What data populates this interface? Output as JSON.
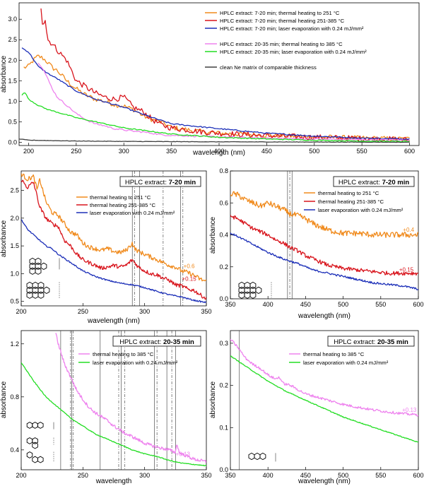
{
  "colors": {
    "orange": "#f08a1c",
    "red": "#d8141c",
    "blue": "#1c2fb8",
    "violet": "#ee82ee",
    "green": "#22dd22",
    "gray": "#404040"
  },
  "chart_data": [
    {
      "id": "top",
      "type": "line",
      "xlabel": "wavelength (nm)",
      "ylabel": "absorbance",
      "xlim": [
        190,
        610
      ],
      "ylim": [
        -0.08,
        3.4
      ],
      "xticks": [
        "200",
        "250",
        "300",
        "350",
        "400",
        "450",
        "500",
        "550",
        "600"
      ],
      "yticks": [
        "0.0",
        "0.5",
        "1.0",
        "1.5",
        "2.0",
        "2.5",
        "3.0"
      ],
      "legend": {
        "group1": [
          {
            "label": "HPLC extract: 7-20 min; thermal heating to 251 °C",
            "color": "orange"
          },
          {
            "label": "HPLC extract: 7-20 min; thermal heating 251-385 °C",
            "color": "red"
          },
          {
            "label": "HPLC extract: 7-20 min; laser evaporation with 0.24 mJ/mm²",
            "color": "blue"
          }
        ],
        "group2": [
          {
            "label": "HPLC extract: 20-35 min; thermal heating to 385 °C",
            "color": "violet"
          },
          {
            "label": "HPLC extract: 20-35 min; laser evaporation with 0.24 mJ/mm²",
            "color": "green"
          }
        ],
        "group3": [
          {
            "label": "clean Ne matrix of comparable thickness",
            "color": "gray"
          }
        ]
      },
      "series": [
        {
          "name": "7-20 min; heating to 251 °C",
          "color": "orange",
          "x": [
            195,
            200,
            205,
            210,
            215,
            220,
            225,
            230,
            240,
            250,
            260,
            270,
            280,
            290,
            300,
            310,
            320,
            330,
            340,
            350,
            380,
            400,
            450,
            500,
            550,
            600
          ],
          "y": [
            1.82,
            1.85,
            2.0,
            2.1,
            2.05,
            1.95,
            1.82,
            1.75,
            1.5,
            1.3,
            1.15,
            1.05,
            1.0,
            0.92,
            0.88,
            0.8,
            0.65,
            0.55,
            0.48,
            0.36,
            0.26,
            0.22,
            0.17,
            0.13,
            0.1,
            0.08
          ],
          "noise": 0.06
        },
        {
          "name": "7-20 min; heating 251-385 °C",
          "color": "red",
          "x": [
            213,
            215,
            217,
            220,
            225,
            230,
            240,
            250,
            260,
            270,
            280,
            290,
            300,
            310,
            320,
            330,
            340,
            350,
            380,
            400,
            450,
            500,
            550,
            600
          ],
          "y": [
            3.3,
            2.8,
            3.1,
            2.5,
            2.4,
            2.25,
            2.0,
            1.5,
            1.35,
            1.2,
            1.1,
            1.05,
            1.1,
            0.85,
            0.75,
            0.55,
            0.42,
            0.35,
            0.26,
            0.22,
            0.16,
            0.12,
            0.09,
            0.06
          ],
          "noise": 0.07
        },
        {
          "name": "7-20 min; laser evaporation",
          "color": "blue",
          "x": [
            193,
            200,
            210,
            220,
            230,
            250,
            270,
            300,
            330,
            350,
            400,
            450,
            500,
            550,
            600
          ],
          "y": [
            2.3,
            2.2,
            1.85,
            1.68,
            1.55,
            1.25,
            1.05,
            0.85,
            0.6,
            0.45,
            0.33,
            0.22,
            0.15,
            0.1,
            0.08
          ],
          "noise": 0.015
        },
        {
          "name": "20-35 min; heating to 385 °C",
          "color": "violet",
          "x": [
            210,
            215,
            220,
            225,
            230,
            240,
            250,
            260,
            270,
            280,
            290,
            300,
            310,
            320,
            330,
            340,
            350,
            400,
            450,
            500,
            550,
            600
          ],
          "y": [
            1.95,
            1.8,
            1.55,
            1.3,
            1.1,
            0.9,
            0.7,
            0.55,
            0.45,
            0.4,
            0.33,
            0.3,
            0.27,
            0.25,
            0.22,
            0.18,
            0.17,
            0.13,
            0.1,
            0.08,
            0.06,
            0.05
          ],
          "noise": 0.02
        },
        {
          "name": "20-35 min; laser evaporation",
          "color": "green",
          "x": [
            193,
            196,
            200,
            210,
            220,
            250,
            300,
            350,
            400,
            450,
            500,
            550,
            600
          ],
          "y": [
            1.15,
            1.22,
            1.05,
            0.9,
            0.8,
            0.6,
            0.35,
            0.2,
            0.12,
            0.08,
            0.05,
            0.03,
            0.02
          ],
          "noise": 0.012
        },
        {
          "name": "clean Ne matrix",
          "color": "gray",
          "x": [
            190,
            200,
            250,
            300,
            350,
            400,
            500,
            600
          ],
          "y": [
            0.08,
            0.05,
            0.03,
            0.02,
            0.015,
            0.01,
            0.005,
            0.0
          ],
          "noise": 0.005
        }
      ]
    },
    {
      "id": "mid-left",
      "type": "line",
      "xlabel": "wavelength (nm)",
      "ylabel": "absorbance",
      "xlim": [
        200,
        350
      ],
      "ylim": [
        0.42,
        2.85
      ],
      "xticks": [
        "200",
        "250",
        "300",
        "350"
      ],
      "yticks": [
        "0.5",
        "1.0",
        "1.5",
        "2.0",
        "2.5"
      ],
      "title_prefix": "HPLC extract: ",
      "title_bold": "7-20 min",
      "legend": [
        {
          "label": "thermal heating to 251 °C",
          "color": "orange"
        },
        {
          "label": "thermal heating 251-385 °C",
          "color": "red"
        },
        {
          "label": "laser evaporation with 0.24 mJ/mm²",
          "color": "blue"
        }
      ],
      "offset_labels": [
        {
          "text": "+0.6",
          "color": "orange",
          "x": 336,
          "y": 1.1
        },
        {
          "text": "+0.15",
          "color": "red",
          "x": 336,
          "y": 0.87
        }
      ],
      "vlines": [
        290,
        292,
        296,
        315,
        329,
        331
      ],
      "series": [
        {
          "name": "heating to 251 °C (+0.6)",
          "color": "orange",
          "x": [
            200,
            205,
            210,
            213,
            215,
            220,
            225,
            230,
            235,
            240,
            245,
            250,
            255,
            260,
            265,
            270,
            275,
            280,
            285,
            290,
            292,
            295,
            300,
            305,
            310,
            315,
            320,
            325,
            330,
            335,
            340,
            345,
            350
          ],
          "y": [
            2.8,
            2.7,
            2.75,
            2.5,
            2.7,
            2.3,
            2.1,
            2.05,
            1.9,
            1.75,
            1.7,
            1.55,
            1.48,
            1.45,
            1.42,
            1.45,
            1.4,
            1.38,
            1.42,
            1.55,
            1.45,
            1.4,
            1.35,
            1.3,
            1.25,
            1.2,
            1.15,
            1.12,
            1.05,
            1.02,
            0.97,
            0.9,
            0.86
          ],
          "noise": 0.04
        },
        {
          "name": "heating 251-385 °C (+0.15)",
          "color": "red",
          "x": [
            200,
            205,
            210,
            215,
            220,
            225,
            230,
            235,
            240,
            245,
            250,
            255,
            260,
            265,
            270,
            275,
            280,
            285,
            290,
            295,
            300,
            305,
            310,
            315,
            320,
            325,
            330,
            335,
            340,
            345,
            350
          ],
          "y": [
            2.7,
            2.55,
            2.65,
            2.2,
            2.0,
            1.9,
            1.85,
            1.6,
            1.5,
            1.35,
            1.25,
            1.2,
            1.15,
            1.1,
            1.12,
            1.15,
            1.12,
            1.15,
            1.25,
            1.12,
            1.05,
            1.0,
            0.98,
            0.92,
            0.88,
            0.8,
            0.78,
            0.72,
            0.7,
            0.62,
            0.55
          ],
          "noise": 0.035
        },
        {
          "name": "laser evaporation",
          "color": "blue",
          "x": [
            200,
            205,
            210,
            215,
            220,
            225,
            230,
            240,
            250,
            260,
            270,
            280,
            290,
            300,
            310,
            320,
            330,
            340,
            350
          ],
          "y": [
            1.98,
            1.8,
            1.7,
            1.6,
            1.5,
            1.45,
            1.35,
            1.2,
            1.05,
            0.95,
            0.88,
            0.83,
            0.8,
            0.75,
            0.68,
            0.62,
            0.58,
            0.52,
            0.48
          ],
          "noise": 0.012
        }
      ]
    },
    {
      "id": "mid-right",
      "type": "line",
      "xlabel": "wavelength (nm)",
      "ylabel": "absorbance",
      "xlim": [
        350,
        600
      ],
      "ylim": [
        0.0,
        0.8
      ],
      "xticks": [
        "350",
        "400",
        "450",
        "500",
        "550",
        "600"
      ],
      "yticks": [
        "0.0",
        "0.2",
        "0.4",
        "0.6",
        "0.8"
      ],
      "title_prefix": "HPLC extract: ",
      "title_bold": "7-20 min",
      "legend": [
        {
          "label": "thermal heating to 251 °C",
          "color": "orange"
        },
        {
          "label": "thermal heating 251-385 °C",
          "color": "red"
        },
        {
          "label": "laser evaporation with 0.24 mJ/mm²",
          "color": "blue"
        }
      ],
      "offset_labels": [
        {
          "text": "+0.4",
          "color": "orange",
          "x": 587,
          "y": 0.42
        },
        {
          "text": "+0.15",
          "color": "red",
          "x": 584,
          "y": 0.17
        }
      ],
      "vlines": [
        426,
        429,
        432
      ],
      "series": [
        {
          "name": "heating to 251 °C (+0.4)",
          "color": "orange",
          "x": [
            350,
            360,
            370,
            380,
            390,
            400,
            410,
            420,
            430,
            440,
            450,
            460,
            470,
            480,
            490,
            500,
            520,
            540,
            560,
            580,
            600
          ],
          "y": [
            0.66,
            0.65,
            0.62,
            0.6,
            0.58,
            0.6,
            0.58,
            0.56,
            0.53,
            0.52,
            0.5,
            0.47,
            0.45,
            0.43,
            0.42,
            0.41,
            0.41,
            0.4,
            0.4,
            0.4,
            0.4
          ],
          "noise": 0.018
        },
        {
          "name": "heating 251-385 °C (+0.15)",
          "color": "red",
          "x": [
            350,
            360,
            370,
            380,
            390,
            400,
            410,
            420,
            430,
            440,
            450,
            460,
            470,
            480,
            490,
            500,
            520,
            540,
            560,
            580,
            600
          ],
          "y": [
            0.52,
            0.5,
            0.47,
            0.44,
            0.42,
            0.4,
            0.37,
            0.35,
            0.32,
            0.3,
            0.27,
            0.25,
            0.23,
            0.21,
            0.2,
            0.19,
            0.18,
            0.17,
            0.16,
            0.16,
            0.16
          ],
          "noise": 0.012
        },
        {
          "name": "laser evaporation",
          "color": "blue",
          "x": [
            350,
            360,
            380,
            400,
            420,
            440,
            460,
            480,
            500,
            520,
            540,
            560,
            580,
            600
          ],
          "y": [
            0.41,
            0.39,
            0.34,
            0.29,
            0.25,
            0.22,
            0.18,
            0.16,
            0.14,
            0.12,
            0.1,
            0.09,
            0.08,
            0.06
          ],
          "noise": 0.006
        }
      ]
    },
    {
      "id": "bottom-left",
      "type": "line",
      "xlabel": "wavelength",
      "ylabel": "absorbance",
      "xlim": [
        200,
        350
      ],
      "ylim": [
        0.25,
        1.3
      ],
      "xticks": [
        "200",
        "250",
        "300",
        "350"
      ],
      "yticks": [
        "0.4",
        "0.8",
        "1.2"
      ],
      "title_prefix": "HPLC extract: ",
      "title_bold": "20-35 min",
      "legend": [
        {
          "label": "thermal heating to 385 °C",
          "color": "violet"
        },
        {
          "label": "laser evaporation with 0.24 mJ/mm²",
          "color": "green"
        }
      ],
      "offset_labels": [
        {
          "text": "+0.13",
          "color": "violet",
          "x": 331,
          "y": 0.355
        }
      ],
      "vlines": [
        232,
        240,
        241,
        242,
        264,
        279,
        281,
        284,
        308,
        310,
        318,
        322,
        325
      ],
      "series": [
        {
          "name": "heating to 385 °C (+0.13)",
          "color": "violet",
          "x": [
            228,
            230,
            235,
            240,
            245,
            250,
            255,
            260,
            265,
            270,
            275,
            280,
            285,
            290,
            300,
            310,
            320,
            325,
            326,
            328,
            330,
            340,
            350
          ],
          "y": [
            1.28,
            1.2,
            1.05,
            0.95,
            0.85,
            0.78,
            0.72,
            0.68,
            0.65,
            0.62,
            0.58,
            0.55,
            0.52,
            0.5,
            0.45,
            0.42,
            0.4,
            0.38,
            0.45,
            0.38,
            0.37,
            0.33,
            0.31
          ],
          "noise": 0.012
        },
        {
          "name": "laser evaporation",
          "color": "green",
          "x": [
            200,
            210,
            220,
            230,
            240,
            250,
            260,
            270,
            280,
            290,
            300,
            310,
            320,
            330,
            340,
            350
          ],
          "y": [
            1.06,
            0.92,
            0.8,
            0.72,
            0.64,
            0.58,
            0.52,
            0.48,
            0.44,
            0.4,
            0.37,
            0.35,
            0.32,
            0.3,
            0.29,
            0.28
          ],
          "noise": 0.003
        }
      ]
    },
    {
      "id": "bottom-right",
      "type": "line",
      "xlabel": "wavelength (nm)",
      "ylabel": "absorbance",
      "xlim": [
        350,
        600
      ],
      "ylim": [
        0.0,
        0.33
      ],
      "xticks": [
        "350",
        "400",
        "450",
        "500",
        "550",
        "600"
      ],
      "yticks": [
        "0.0",
        "0.1",
        "0.2",
        "0.3"
      ],
      "title_prefix": "HPLC extract: ",
      "title_bold": "20-35 min",
      "legend": [
        {
          "label": "thermal heating to 385 °C",
          "color": "violet"
        },
        {
          "label": "laser evaporation with 0.24 mJ/mm²",
          "color": "green"
        }
      ],
      "offset_labels": [
        {
          "text": "+0.13",
          "color": "violet",
          "x": 588,
          "y": 0.137
        }
      ],
      "vlines": [
        362
      ],
      "series": [
        {
          "name": "heating to 385 °C (+0.13)",
          "color": "violet",
          "x": [
            350,
            360,
            370,
            380,
            390,
            400,
            410,
            415,
            420,
            430,
            440,
            450,
            460,
            480,
            500,
            520,
            540,
            560,
            580,
            600
          ],
          "y": [
            0.31,
            0.29,
            0.265,
            0.25,
            0.24,
            0.225,
            0.215,
            0.22,
            0.205,
            0.2,
            0.19,
            0.18,
            0.175,
            0.165,
            0.155,
            0.148,
            0.142,
            0.137,
            0.133,
            0.13
          ],
          "noise": 0.003
        },
        {
          "name": "laser evaporation",
          "color": "green",
          "x": [
            350,
            375,
            400,
            425,
            450,
            475,
            500,
            525,
            550,
            575,
            600
          ],
          "y": [
            0.27,
            0.24,
            0.21,
            0.185,
            0.165,
            0.145,
            0.125,
            0.11,
            0.095,
            0.08,
            0.065
          ],
          "noise": 0.001
        }
      ]
    }
  ]
}
